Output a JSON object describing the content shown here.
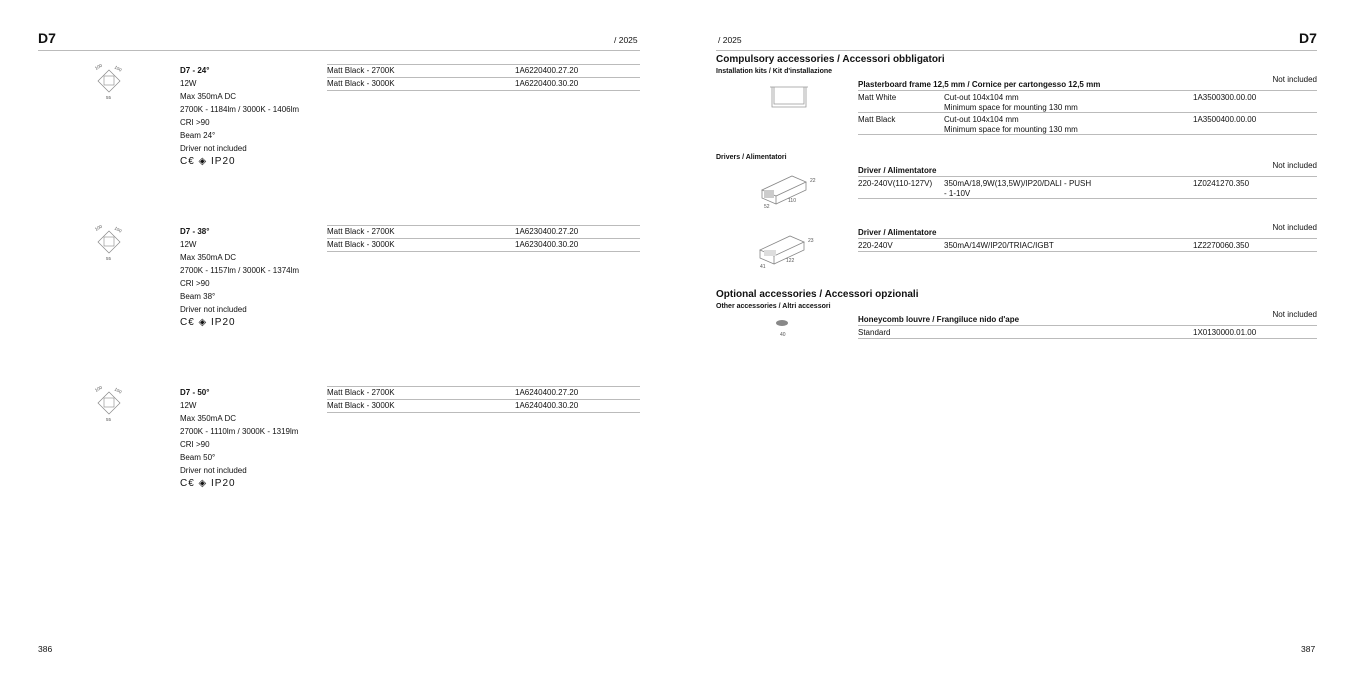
{
  "left_page": {
    "section": "D7",
    "year": "/ 2025",
    "page_number": "386",
    "products": [
      {
        "title": "D7 - 24°",
        "specs": [
          "12W",
          "Max 350mA DC",
          "2700K - 1184lm / 3000K - 1406lm",
          "CRI >90",
          "Beam 24°",
          "Driver not included"
        ],
        "marks": "C€ ◈ IP20",
        "dims": [
          "100",
          "100",
          "55"
        ],
        "variants": [
          {
            "finish": "Matt Black - 2700K",
            "code": "1A6220400.27.20"
          },
          {
            "finish": "Matt Black - 3000K",
            "code": "1A6220400.30.20"
          }
        ]
      },
      {
        "title": "D7 - 38°",
        "specs": [
          "12W",
          "Max 350mA DC",
          "2700K - 1157lm / 3000K - 1374lm",
          "CRI >90",
          "Beam 38°",
          "Driver not included"
        ],
        "marks": "C€ ◈ IP20",
        "dims": [
          "100",
          "100",
          "55"
        ],
        "variants": [
          {
            "finish": "Matt Black - 2700K",
            "code": "1A6230400.27.20"
          },
          {
            "finish": "Matt Black - 3000K",
            "code": "1A6230400.30.20"
          }
        ]
      },
      {
        "title": "D7 - 50°",
        "specs": [
          "12W",
          "Max 350mA DC",
          "2700K - 1110lm / 3000K - 1319lm",
          "CRI >90",
          "Beam 50°",
          "Driver not included"
        ],
        "marks": "C€ ◈ IP20",
        "dims": [
          "100",
          "100",
          "55"
        ],
        "variants": [
          {
            "finish": "Matt Black - 2700K",
            "code": "1A6240400.27.20"
          },
          {
            "finish": "Matt Black - 3000K",
            "code": "1A6240400.30.20"
          }
        ]
      }
    ]
  },
  "right_page": {
    "section": "D7",
    "year": "/ 2025",
    "page_number": "387",
    "compulsory": {
      "title": "Compulsory accessories / Accessori obbligatori",
      "kits": {
        "subtitle": "Installation kits / Kit d'installazione",
        "header": "Plasterboard frame 12,5 mm / Cornice per cartongesso 12,5 mm",
        "status": "Not included",
        "rows": [
          {
            "finish": "Matt White",
            "desc1": "Cut-out 104x104 mm",
            "desc2": "Minimum space for mounting 130 mm",
            "code": "1A3500300.00.00"
          },
          {
            "finish": "Matt Black",
            "desc1": "Cut-out 104x104 mm",
            "desc2": "Minimum space for mounting 130 mm",
            "code": "1A3500400.00.00"
          }
        ]
      },
      "drivers": {
        "subtitle": "Drivers / Alimentatori",
        "items": [
          {
            "header": "Driver / Alimentatore",
            "status": "Not included",
            "voltage": "220-240V(110-127V)",
            "desc1": "350mA/18,9W(13,5W)/IP20/DALI - PUSH",
            "desc2": "- 1-10V",
            "code": "1Z0241270.350",
            "dims": [
              "22",
              "110",
              "52"
            ]
          },
          {
            "header": "Driver / Alimentatore",
            "status": "Not included",
            "voltage": "220-240V",
            "desc1": "350mA/14W/IP20/TRIAC/IGBT",
            "code": "1Z2270060.350",
            "dims": [
              "23",
              "122",
              "41"
            ]
          }
        ]
      }
    },
    "optional": {
      "title": "Optional accessories / Accessori opzionali",
      "subtitle": "Other accessories / Altri accessori",
      "header": "Honeycomb louvre / Frangiluce nido d'ape",
      "status": "Not included",
      "rows": [
        {
          "name": "Standard",
          "code": "1X0130000.01.00"
        }
      ],
      "dims": [
        "40"
      ]
    }
  }
}
